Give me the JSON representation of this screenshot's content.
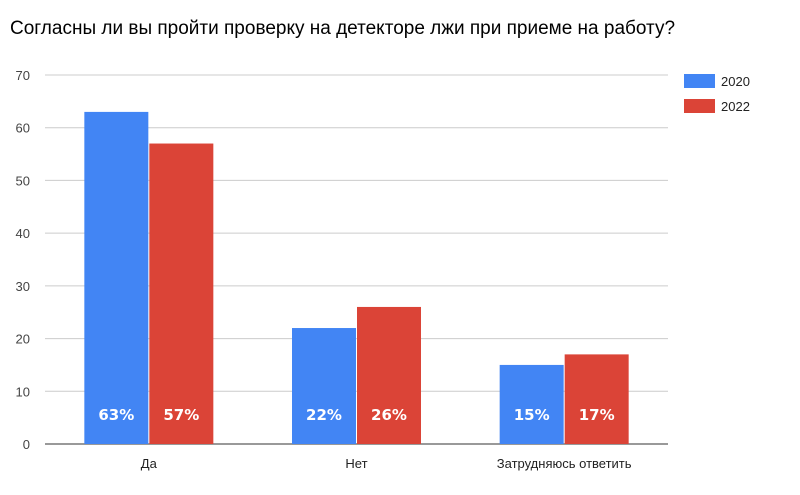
{
  "chart_data": {
    "type": "bar",
    "title": "Согласны ли вы пройти проверку на детекторе лжи при приеме на работу?",
    "categories": [
      "Да",
      "Нет",
      "Затрудняюсь ответить"
    ],
    "series": [
      {
        "name": "2020",
        "color": "#4285f4",
        "values": [
          63,
          22,
          15
        ],
        "labels": [
          "63%",
          "22%",
          "15%"
        ]
      },
      {
        "name": "2022",
        "color": "#db4437",
        "values": [
          57,
          26,
          17
        ],
        "labels": [
          "57%",
          "26%",
          "17%"
        ]
      }
    ],
    "ylim": [
      0,
      70
    ],
    "yticks": [
      0,
      10,
      20,
      30,
      40,
      50,
      60,
      70
    ],
    "grid": true,
    "legend": "right"
  }
}
